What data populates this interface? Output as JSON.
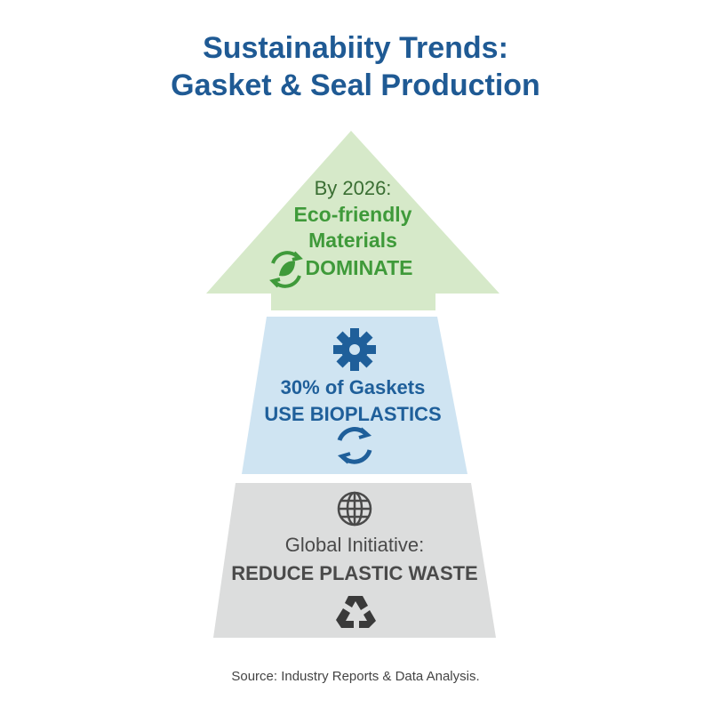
{
  "header": {
    "title_lines": [
      "Sustainabiity Trends:",
      "Gasket & Seal Production"
    ]
  },
  "tiers": [
    {
      "lines": [
        "By 2026:",
        "Eco-friendly",
        "Materials",
        "DOMINATE"
      ]
    },
    {
      "lines": [
        "30% of Gaskets",
        "USE BIOPLASTICS"
      ]
    },
    {
      "lines": [
        "Global Initiative:",
        "REDUCE PLASTIC WASTE"
      ]
    }
  ],
  "source": "Source: Industry Reports & Data Analysis."
}
